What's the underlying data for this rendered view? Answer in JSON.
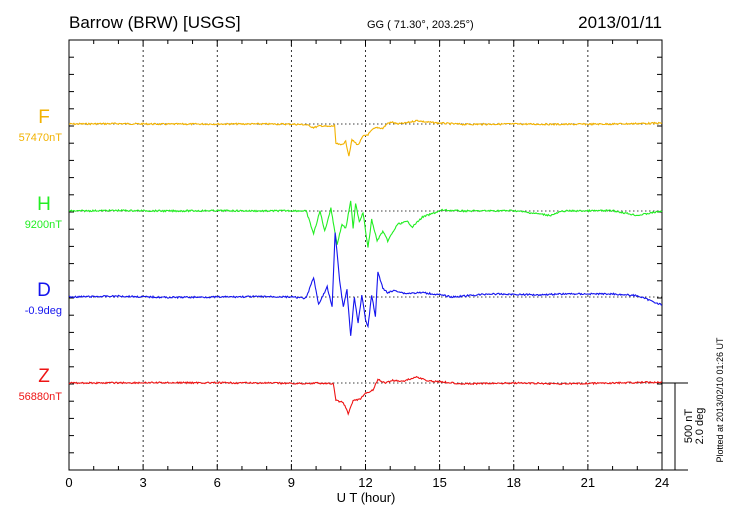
{
  "header": {
    "station": "Barrow (BRW)  [USGS]",
    "coords": "GG ( 71.30°, 203.25°)",
    "date": "2013/01/11"
  },
  "footer": {
    "plotted": "Plotted at 2013/02/10 01:26 UT"
  },
  "chart_data": {
    "type": "line",
    "title": "Barrow (BRW)  [USGS]",
    "xlabel": "U T (hour)",
    "ylabel": "",
    "xlim": [
      0,
      24
    ],
    "xticks": [
      "0",
      "3",
      "6",
      "9",
      "12",
      "15",
      "18",
      "21",
      "24"
    ],
    "grid": "vertical dashed every 3 hours; dotted baseline per component",
    "scale": {
      "nT_label": "500 nT",
      "deg_label": "2.0 deg",
      "nT": 500,
      "deg": 2.0
    },
    "colors": {
      "F": "#f2b200",
      "H": "#22ee22",
      "D": "#1414ee",
      "Z": "#ee1414"
    },
    "series": [
      {
        "name": "F",
        "baseline_label": "57470nT",
        "unit": "nT",
        "points": [
          [
            0,
            0
          ],
          [
            2,
            2
          ],
          [
            4,
            -1
          ],
          [
            6,
            0
          ],
          [
            8,
            0
          ],
          [
            9,
            -1
          ],
          [
            9.6,
            -4
          ],
          [
            9.9,
            -20
          ],
          [
            10.2,
            -10
          ],
          [
            10.5,
            -15
          ],
          [
            10.75,
            -10
          ],
          [
            10.8,
            -110
          ],
          [
            11.0,
            -120
          ],
          [
            11.2,
            -100
          ],
          [
            11.33,
            -180
          ],
          [
            11.45,
            -90
          ],
          [
            11.7,
            -120
          ],
          [
            11.9,
            -70
          ],
          [
            12.1,
            -60
          ],
          [
            12.3,
            -30
          ],
          [
            12.47,
            -20
          ],
          [
            12.7,
            -25
          ],
          [
            12.9,
            5
          ],
          [
            13.1,
            10
          ],
          [
            13.3,
            0
          ],
          [
            13.6,
            5
          ],
          [
            14.1,
            20
          ],
          [
            14.4,
            12
          ],
          [
            15,
            5
          ],
          [
            16,
            -2
          ],
          [
            18,
            0
          ],
          [
            20,
            -2
          ],
          [
            22,
            0
          ],
          [
            24,
            5
          ]
        ]
      },
      {
        "name": "H",
        "baseline_label": "9200nT",
        "unit": "nT",
        "points": [
          [
            0,
            0
          ],
          [
            2,
            3
          ],
          [
            4,
            0
          ],
          [
            6,
            2
          ],
          [
            8,
            0
          ],
          [
            9,
            2
          ],
          [
            9.6,
            0
          ],
          [
            9.9,
            -130
          ],
          [
            10.16,
            0
          ],
          [
            10.35,
            -115
          ],
          [
            10.6,
            15
          ],
          [
            10.85,
            -190
          ],
          [
            11.05,
            -75
          ],
          [
            11.2,
            -100
          ],
          [
            11.4,
            55
          ],
          [
            11.5,
            -95
          ],
          [
            11.6,
            45
          ],
          [
            11.75,
            -60
          ],
          [
            11.9,
            -10
          ],
          [
            12.1,
            -210
          ],
          [
            12.25,
            -50
          ],
          [
            12.47,
            -170
          ],
          [
            12.7,
            -115
          ],
          [
            12.9,
            -170
          ],
          [
            13.3,
            -75
          ],
          [
            13.7,
            -60
          ],
          [
            13.9,
            -90
          ],
          [
            14.3,
            -35
          ],
          [
            14.7,
            -15
          ],
          [
            15.1,
            5
          ],
          [
            16,
            0
          ],
          [
            18,
            2
          ],
          [
            19.5,
            -25
          ],
          [
            20,
            0
          ],
          [
            22,
            2
          ],
          [
            23,
            -25
          ],
          [
            24,
            0
          ]
        ]
      },
      {
        "name": "D",
        "baseline_label": "-0.9deg",
        "unit": "deg",
        "points": [
          [
            0,
            0
          ],
          [
            2,
            0.02
          ],
          [
            4,
            -0.01
          ],
          [
            6,
            0
          ],
          [
            8,
            0.01
          ],
          [
            9,
            0
          ],
          [
            9.6,
            -0.03
          ],
          [
            9.9,
            0.45
          ],
          [
            10.1,
            -0.18
          ],
          [
            10.45,
            0.23
          ],
          [
            10.65,
            -0.23
          ],
          [
            10.77,
            1.48
          ],
          [
            10.95,
            0.38
          ],
          [
            11.1,
            -0.23
          ],
          [
            11.25,
            0.16
          ],
          [
            11.4,
            -0.9
          ],
          [
            11.55,
            0.0
          ],
          [
            11.7,
            -0.6
          ],
          [
            11.85,
            0.05
          ],
          [
            12.0,
            -0.5
          ],
          [
            12.1,
            -0.68
          ],
          [
            12.25,
            0.05
          ],
          [
            12.4,
            -0.45
          ],
          [
            12.5,
            0.57
          ],
          [
            12.7,
            0.2
          ],
          [
            12.9,
            0.1
          ],
          [
            13.2,
            0.15
          ],
          [
            13.6,
            0.08
          ],
          [
            14.3,
            0.1
          ],
          [
            15,
            0.05
          ],
          [
            15.5,
            0
          ],
          [
            17,
            0.07
          ],
          [
            19,
            0.05
          ],
          [
            20,
            0.07
          ],
          [
            22,
            0.07
          ],
          [
            23,
            0.03
          ],
          [
            24,
            -0.18
          ]
        ]
      },
      {
        "name": "Z",
        "baseline_label": "56880nT",
        "unit": "nT",
        "points": [
          [
            0,
            0
          ],
          [
            4,
            2
          ],
          [
            8,
            0
          ],
          [
            9.6,
            -3
          ],
          [
            10,
            0
          ],
          [
            10.7,
            -5
          ],
          [
            10.8,
            -100
          ],
          [
            11.1,
            -110
          ],
          [
            11.3,
            -175
          ],
          [
            11.5,
            -100
          ],
          [
            11.8,
            -90
          ],
          [
            12.0,
            -60
          ],
          [
            12.3,
            -40
          ],
          [
            12.5,
            20
          ],
          [
            12.8,
            0
          ],
          [
            13.1,
            15
          ],
          [
            13.5,
            10
          ],
          [
            14.1,
            35
          ],
          [
            14.5,
            12
          ],
          [
            15,
            8
          ],
          [
            16,
            -5
          ],
          [
            18,
            0
          ],
          [
            20,
            -5
          ],
          [
            22,
            0
          ],
          [
            24,
            5
          ]
        ]
      }
    ]
  }
}
